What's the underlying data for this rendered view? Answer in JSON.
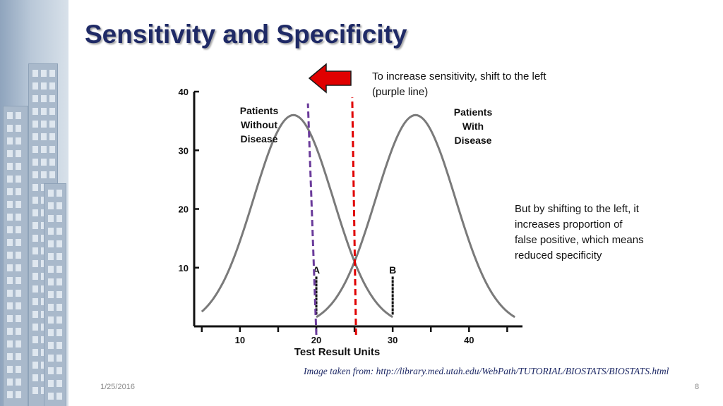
{
  "slide": {
    "title": "Sensitivity and Specificity",
    "note_left_shift": [
      "To increase sensitivity, shift to the left",
      "(purple line)"
    ],
    "note_tradeoff": [
      "But by shifting to the left, it",
      "increases proportion of",
      "false positive, which means",
      "reduced specificity"
    ],
    "source": "Image taken from: http://library.med.utah.edu/WebPath/TUTORIAL/BIOSTATS/BIOSTATS.html",
    "date": "1/25/2016",
    "page_number": "8"
  },
  "colors": {
    "title": "#1f2a66",
    "curve": "#7a7a7a",
    "purple_line": "#6a3a9a",
    "red_line": "#e00000",
    "arrow_fill": "#e00000",
    "arrow_stroke": "#1a1a1a"
  },
  "icons": {
    "arrow": "left-arrow-icon"
  },
  "chart_data": {
    "type": "line",
    "title": "",
    "xlabel": "Test Result Units",
    "ylabel": "",
    "xlim": [
      4,
      47
    ],
    "ylim": [
      0,
      40
    ],
    "x_ticks": [
      10,
      20,
      30,
      40
    ],
    "y_ticks": [
      10,
      20,
      30,
      40
    ],
    "series": [
      {
        "name": "Patients Without Disease",
        "label_lines": [
          "Patients",
          "Without",
          "Disease"
        ],
        "mean": 17,
        "sd": 5.2,
        "peak": 36,
        "x_range": [
          5,
          30
        ]
      },
      {
        "name": "Patients With Disease",
        "label_lines": [
          "Patients",
          "With",
          "Disease"
        ],
        "mean": 33,
        "sd": 5.2,
        "peak": 36,
        "x_range": [
          20,
          46
        ]
      }
    ],
    "markers": [
      {
        "label": "A",
        "x": 20,
        "y_bottom": 2,
        "y_top": 8.5
      },
      {
        "label": "B",
        "x": 30,
        "y_bottom": 2,
        "y_top": 8.5
      }
    ],
    "cutoff_lines": [
      {
        "name": "purple",
        "x_bottom": 20,
        "x_top": 18.9,
        "y_top": 38
      },
      {
        "name": "red",
        "x_bottom": 25.2,
        "x_top": 24.7,
        "y_top": 39
      }
    ]
  }
}
